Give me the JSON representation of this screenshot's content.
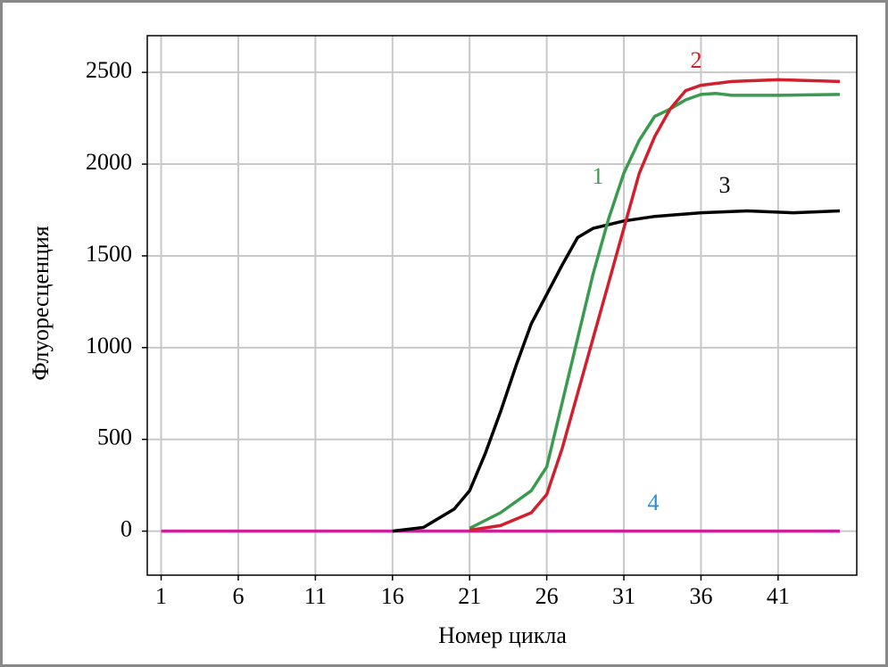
{
  "chart_data": {
    "type": "line",
    "x_label": "Номер цикла",
    "y_label": "Флуоресценция",
    "xlim": [
      0.1,
      46.1
    ],
    "ylim": [
      -240,
      2700
    ],
    "xticks": [
      1,
      6,
      11,
      16,
      21,
      26,
      31,
      36,
      41
    ],
    "yticks": [
      0,
      500,
      1000,
      1500,
      2000,
      2500
    ],
    "grid": true,
    "series": [
      {
        "name": "1",
        "color": "#3a9a50",
        "x": [
          21,
          23,
          25,
          26,
          27,
          28,
          29,
          30,
          31,
          32,
          33,
          34,
          35,
          36,
          37,
          38,
          41,
          45
        ],
        "values": [
          15,
          100,
          220,
          350,
          700,
          1050,
          1400,
          1700,
          1950,
          2130,
          2260,
          2300,
          2350,
          2380,
          2385,
          2375,
          2375,
          2380
        ]
      },
      {
        "name": "2",
        "color": "#d0202e",
        "x": [
          21,
          23,
          25,
          26,
          27,
          28,
          29,
          30,
          31,
          32,
          33,
          34,
          35,
          36,
          38,
          41,
          45
        ],
        "values": [
          5,
          30,
          100,
          200,
          450,
          750,
          1050,
          1350,
          1650,
          1950,
          2150,
          2300,
          2400,
          2430,
          2450,
          2460,
          2450
        ]
      },
      {
        "name": "3",
        "color": "#000000",
        "x": [
          16,
          18,
          20,
          21,
          22,
          23,
          24,
          25,
          26,
          27,
          28,
          29,
          31,
          33,
          36,
          39,
          42,
          45
        ],
        "values": [
          0,
          20,
          120,
          220,
          420,
          650,
          900,
          1130,
          1290,
          1450,
          1600,
          1650,
          1690,
          1715,
          1735,
          1745,
          1735,
          1745
        ]
      },
      {
        "name": "4",
        "color": "#cc2299",
        "label_color": "#2a8fd0",
        "x": [
          1,
          45
        ],
        "values": [
          0,
          0
        ]
      }
    ]
  }
}
